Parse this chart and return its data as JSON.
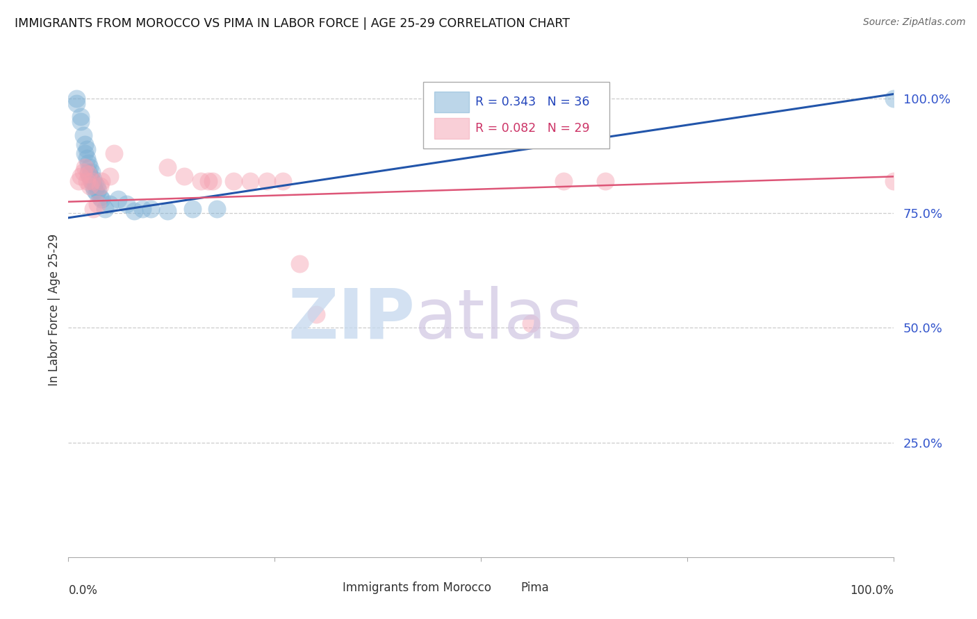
{
  "title": "IMMIGRANTS FROM MOROCCO VS PIMA IN LABOR FORCE | AGE 25-29 CORRELATION CHART",
  "source": "Source: ZipAtlas.com",
  "ylabel": "In Labor Force | Age 25-29",
  "ytick_labels": [
    "100.0%",
    "75.0%",
    "50.0%",
    "25.0%"
  ],
  "ytick_values": [
    1.0,
    0.75,
    0.5,
    0.25
  ],
  "xlim": [
    0.0,
    1.0
  ],
  "ylim": [
    0.0,
    1.08
  ],
  "legend_label1": "R = 0.343   N = 36",
  "legend_label2": "R = 0.082   N = 29",
  "color_blue": "#7bafd4",
  "color_pink": "#f4a0b0",
  "trendline_blue": "#2255aa",
  "trendline_pink": "#dd5577",
  "blue_x": [
    0.01,
    0.01,
    0.015,
    0.015,
    0.018,
    0.02,
    0.02,
    0.022,
    0.022,
    0.024,
    0.024,
    0.026,
    0.026,
    0.028,
    0.028,
    0.03,
    0.03,
    0.032,
    0.032,
    0.034,
    0.034,
    0.036,
    0.038,
    0.04,
    0.044,
    0.05,
    0.06,
    0.07,
    0.08,
    0.09,
    0.1,
    0.12,
    0.15,
    0.18,
    0.56,
    1.0
  ],
  "blue_y": [
    0.99,
    1.0,
    0.95,
    0.96,
    0.92,
    0.88,
    0.9,
    0.87,
    0.89,
    0.84,
    0.86,
    0.83,
    0.85,
    0.82,
    0.84,
    0.81,
    0.825,
    0.8,
    0.815,
    0.795,
    0.81,
    0.8,
    0.785,
    0.78,
    0.76,
    0.77,
    0.78,
    0.77,
    0.755,
    0.76,
    0.76,
    0.755,
    0.76,
    0.76,
    0.96,
    1.0
  ],
  "pink_x": [
    0.012,
    0.015,
    0.018,
    0.02,
    0.022,
    0.024,
    0.026,
    0.028,
    0.03,
    0.035,
    0.038,
    0.04,
    0.05,
    0.055,
    0.12,
    0.14,
    0.16,
    0.17,
    0.175,
    0.2,
    0.22,
    0.24,
    0.26,
    0.28,
    0.3,
    0.56,
    0.6,
    0.65,
    1.0
  ],
  "pink_y": [
    0.82,
    0.83,
    0.84,
    0.85,
    0.82,
    0.835,
    0.81,
    0.82,
    0.76,
    0.77,
    0.81,
    0.82,
    0.83,
    0.88,
    0.85,
    0.83,
    0.82,
    0.82,
    0.82,
    0.82,
    0.82,
    0.82,
    0.82,
    0.64,
    0.53,
    0.51,
    0.82,
    0.82,
    0.82
  ],
  "blue_trend_x": [
    0.0,
    1.0
  ],
  "blue_trend_y": [
    0.74,
    1.01
  ],
  "pink_trend_x": [
    0.0,
    1.0
  ],
  "pink_trend_y": [
    0.775,
    0.83
  ]
}
